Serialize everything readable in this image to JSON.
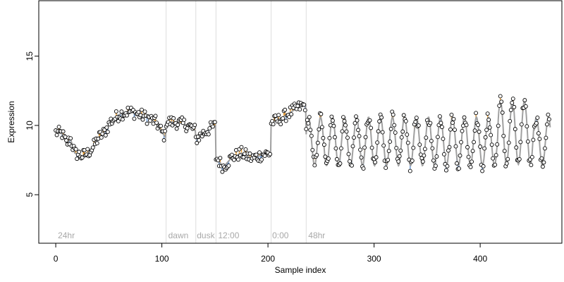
{
  "chart_data": {
    "type": "scatter",
    "title": "",
    "xlabel": "Sample index",
    "ylabel": "Expression",
    "xlim": [
      -16,
      477
    ],
    "ylim": [
      1.5,
      19
    ],
    "xticks": [
      0,
      100,
      200,
      300,
      400
    ],
    "yticks": [
      5,
      10,
      15
    ],
    "grid": false,
    "legend": "none",
    "colors": {
      "point_stroke": "#000000",
      "point_fill": "#ffffff",
      "fit_line": "#a0a0a0",
      "residual_above": "#f0a43a",
      "residual_below": "#6f9bd6",
      "divider": "#dddddd",
      "section_label": "#a8a8a8"
    },
    "section_labels": [
      {
        "x": 2,
        "label": "24hr"
      },
      {
        "x": 106,
        "label": "dawn"
      },
      {
        "x": 133,
        "label": "dusk"
      },
      {
        "x": 153,
        "label": "12:00"
      },
      {
        "x": 204,
        "label": "0:00"
      },
      {
        "x": 238,
        "label": "48hr"
      }
    ],
    "dividers": [
      104,
      132,
      151,
      203,
      236
    ],
    "segments": [
      {
        "start": 0,
        "end": 104,
        "knots": [
          [
            0,
            9.5
          ],
          [
            6,
            9.4
          ],
          [
            10,
            8.7
          ],
          [
            14,
            9.0
          ],
          [
            18,
            8.0
          ],
          [
            25,
            7.8
          ],
          [
            30,
            8.0
          ],
          [
            35,
            8.4
          ],
          [
            40,
            9.1
          ],
          [
            46,
            9.5
          ],
          [
            52,
            10.3
          ],
          [
            60,
            10.8
          ],
          [
            68,
            11.0
          ],
          [
            75,
            10.9
          ],
          [
            85,
            10.6
          ],
          [
            95,
            10.2
          ],
          [
            100,
            9.5
          ],
          [
            104,
            9.1
          ]
        ]
      },
      {
        "start": 104,
        "end": 132,
        "knots": [
          [
            104,
            10.3
          ],
          [
            115,
            10.2
          ],
          [
            125,
            10.0
          ],
          [
            132,
            9.6
          ]
        ]
      },
      {
        "start": 132,
        "end": 151,
        "knots": [
          [
            132,
            9.0
          ],
          [
            140,
            9.5
          ],
          [
            148,
            9.9
          ],
          [
            151,
            10.0
          ]
        ]
      },
      {
        "start": 151,
        "end": 203,
        "knots": [
          [
            151,
            7.7
          ],
          [
            158,
            7.0
          ],
          [
            166,
            7.7
          ],
          [
            175,
            8.0
          ],
          [
            185,
            7.6
          ],
          [
            195,
            7.9
          ],
          [
            203,
            8.0
          ]
        ]
      },
      {
        "start": 203,
        "end": 236,
        "knots": [
          [
            203,
            10.2
          ],
          [
            210,
            10.4
          ],
          [
            220,
            10.9
          ],
          [
            229,
            11.3
          ],
          [
            236,
            11.5
          ]
        ]
      }
    ],
    "oscillation": {
      "start": 236,
      "end": 466,
      "period": 11.3,
      "mean": 8.85,
      "amplitude": 1.75,
      "peak_boost": 0.9
    },
    "n_points": 466
  }
}
